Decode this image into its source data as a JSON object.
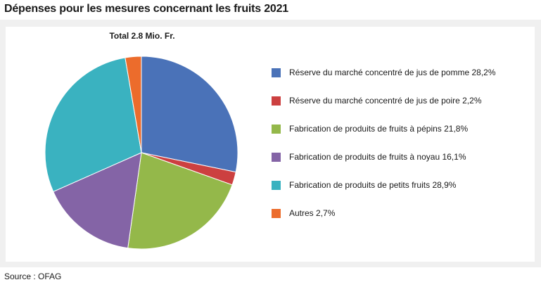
{
  "header": {
    "title": "Dépenses pour les mesures concernant les fruits 2021"
  },
  "footer": {
    "source": "Source : OFAG"
  },
  "chart_data": {
    "type": "pie",
    "title": "Dépenses pour les mesures concernant les fruits 2021",
    "subtitle": "Total 2.8 Mio. Fr.",
    "legend_position": "right",
    "slices": [
      {
        "label": "Réserve du marché concentré de jus de pomme 28,2%",
        "value": 28.2,
        "color": "#4a72b8"
      },
      {
        "label": "Réserve du marché concentré de jus de poire 2,2%",
        "value": 2.2,
        "color": "#cc4040"
      },
      {
        "label": "Fabrication de produits de fruits à pépins 21,8%",
        "value": 21.8,
        "color": "#94b84a"
      },
      {
        "label": "Fabrication de produits de fruits à noyau 16,1%",
        "value": 16.1,
        "color": "#8464a6"
      },
      {
        "label": "Fabrication de produits de petits fruits 28,9%",
        "value": 28.9,
        "color": "#3ab2c0"
      },
      {
        "label": "Autres 2,7%",
        "value": 2.7,
        "color": "#ec6c2c"
      }
    ]
  }
}
